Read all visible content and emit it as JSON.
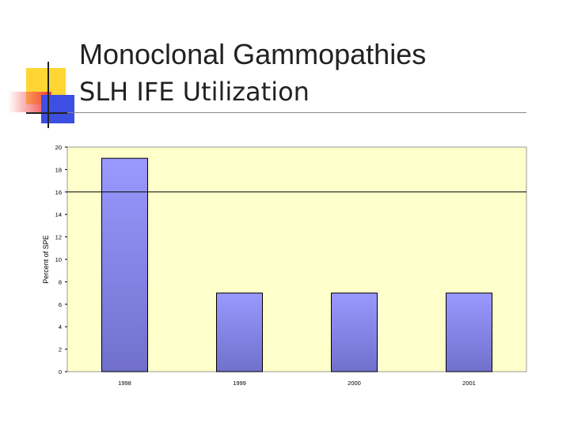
{
  "slide": {
    "title_line1": "Monoclonal Gammopathies",
    "title_line2": "SLH IFE Utilization",
    "accent_yellow": "#ffd633",
    "accent_red": "#f23c3c",
    "accent_blue": "#3d4fe0"
  },
  "chart_data": {
    "type": "bar",
    "title": "",
    "xlabel": "",
    "ylabel": "Percent of SPE",
    "categories": [
      "1998",
      "1999",
      "2000",
      "2001"
    ],
    "values": [
      19,
      7,
      7,
      7
    ],
    "ylim": [
      0,
      20
    ],
    "yticks": [
      "0",
      "2",
      "4",
      "6",
      "8",
      "10",
      "12",
      "14",
      "16",
      "18",
      "20"
    ],
    "reference_line": 16,
    "grid": false,
    "legend": "none",
    "plot_background": "#ffffcc",
    "bar_color_top": "#9999ff",
    "bar_color_bottom": "#7070cc"
  }
}
